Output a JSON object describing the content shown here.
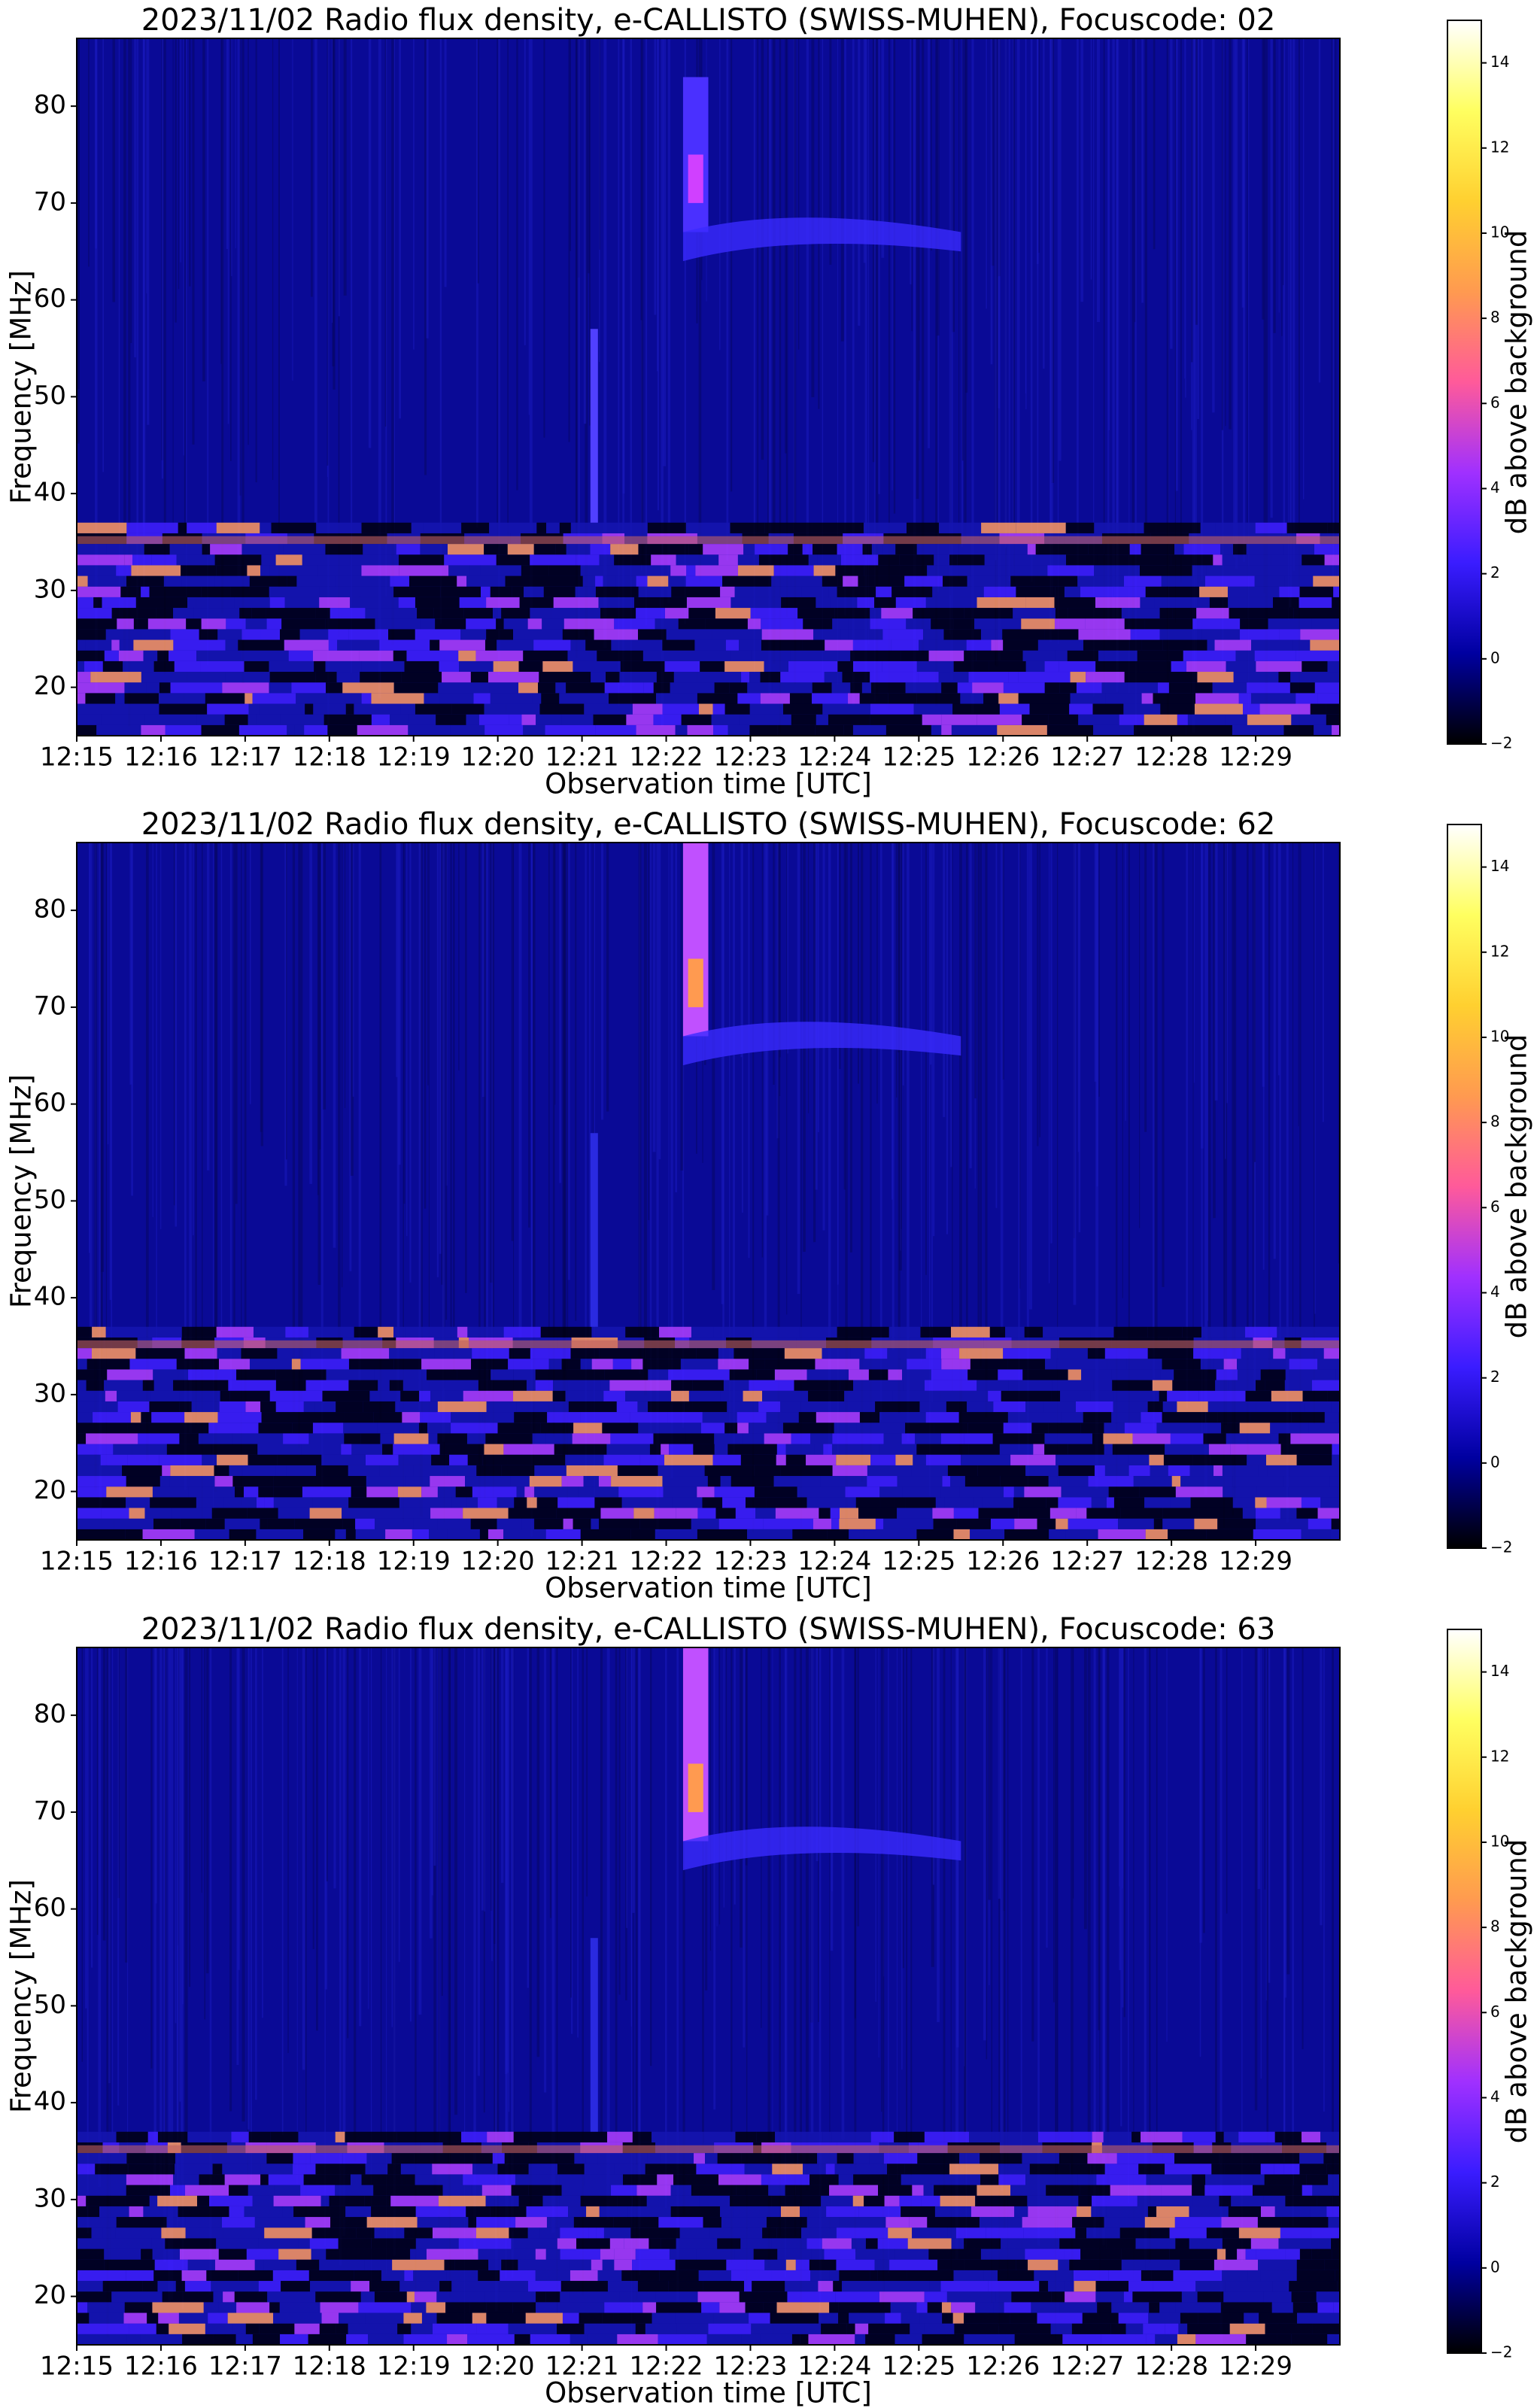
{
  "chart_data": [
    {
      "type": "heatmap",
      "title": "2023/11/02  Radio flux density, e-CALLISTO (SWISS-MUHEN), Focuscode: 02",
      "xlabel": "Observation time [UTC]",
      "ylabel": "Frequency [MHz]",
      "xlim": [
        "12:15",
        "12:30"
      ],
      "xticks": [
        "12:15",
        "12:16",
        "12:17",
        "12:18",
        "12:19",
        "12:20",
        "12:21",
        "12:22",
        "12:23",
        "12:24",
        "12:25",
        "12:26",
        "12:27",
        "12:28",
        "12:29"
      ],
      "ylim": [
        15,
        87
      ],
      "yticks": [
        20,
        30,
        40,
        50,
        60,
        70,
        80
      ],
      "colorbar": {
        "label": "dB above background",
        "lim": [
          -2,
          15
        ],
        "ticks": [
          {
            "value": -2,
            "label": "−2"
          },
          0,
          2,
          4,
          6,
          8,
          10,
          12,
          14
        ],
        "colormap": [
          "#000000",
          "#0000a0",
          "#3a1cff",
          "#a030ff",
          "#ff5a9a",
          "#ff9a50",
          "#ffd030",
          "#ffff60",
          "#ffffff"
        ]
      }
    },
    {
      "type": "heatmap",
      "title": "2023/11/02  Radio flux density, e-CALLISTO (SWISS-MUHEN), Focuscode: 62",
      "xlabel": "Observation time [UTC]",
      "ylabel": "Frequency [MHz]",
      "xlim": [
        "12:15",
        "12:30"
      ],
      "xticks": [
        "12:15",
        "12:16",
        "12:17",
        "12:18",
        "12:19",
        "12:20",
        "12:21",
        "12:22",
        "12:23",
        "12:24",
        "12:25",
        "12:26",
        "12:27",
        "12:28",
        "12:29"
      ],
      "ylim": [
        15,
        87
      ],
      "yticks": [
        20,
        30,
        40,
        50,
        60,
        70,
        80
      ],
      "colorbar": {
        "label": "dB above background",
        "lim": [
          -2,
          15
        ],
        "ticks": [
          {
            "value": -2,
            "label": "−2"
          },
          0,
          2,
          4,
          6,
          8,
          10,
          12,
          14
        ],
        "colormap": [
          "#000000",
          "#0000a0",
          "#3a1cff",
          "#a030ff",
          "#ff5a9a",
          "#ff9a50",
          "#ffd030",
          "#ffff60",
          "#ffffff"
        ]
      }
    },
    {
      "type": "heatmap",
      "title": "2023/11/02  Radio flux density, e-CALLISTO (SWISS-MUHEN), Focuscode: 63",
      "xlabel": "Observation time [UTC]",
      "ylabel": "Frequency [MHz]",
      "xlim": [
        "12:15",
        "12:30"
      ],
      "xticks": [
        "12:15",
        "12:16",
        "12:17",
        "12:18",
        "12:19",
        "12:20",
        "12:21",
        "12:22",
        "12:23",
        "12:24",
        "12:25",
        "12:26",
        "12:27",
        "12:28",
        "12:29"
      ],
      "ylim": [
        15,
        87
      ],
      "yticks": [
        20,
        30,
        40,
        50,
        60,
        70,
        80
      ],
      "colorbar": {
        "label": "dB above background",
        "lim": [
          -2,
          15
        ],
        "ticks": [
          {
            "value": -2,
            "label": "−2"
          },
          0,
          2,
          4,
          6,
          8,
          10,
          12,
          14
        ],
        "colormap": [
          "#000000",
          "#0000a0",
          "#3a1cff",
          "#a030ff",
          "#ff5a9a",
          "#ff9a50",
          "#ffd030",
          "#ffff60",
          "#ffffff"
        ]
      }
    }
  ]
}
